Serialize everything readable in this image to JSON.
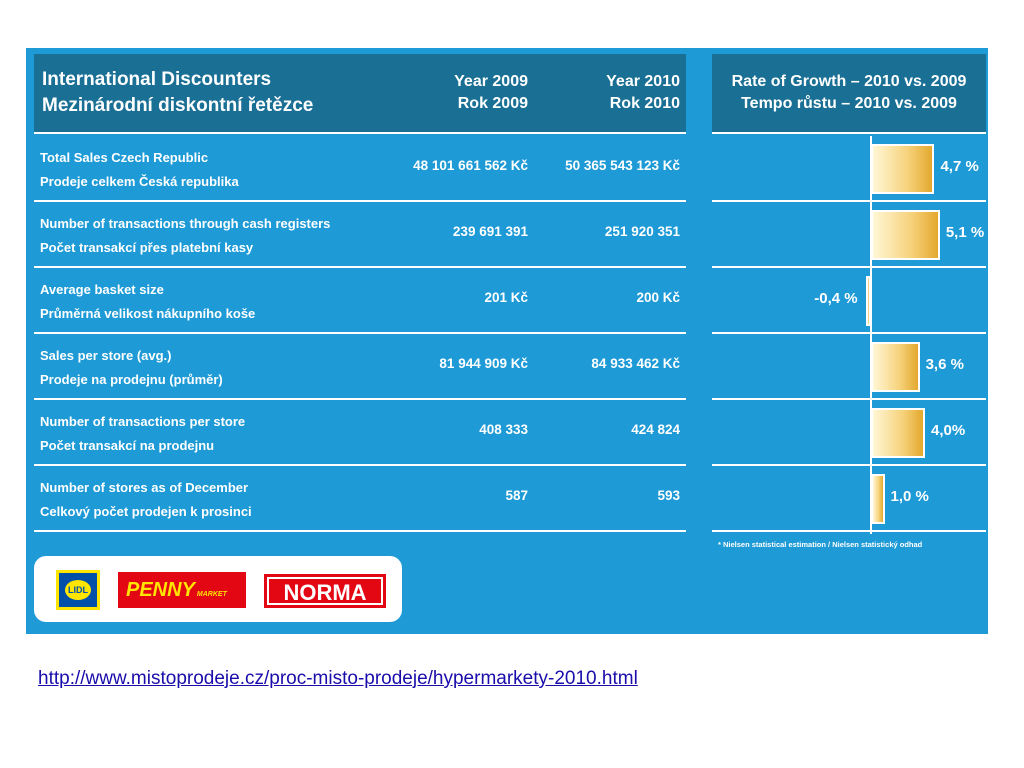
{
  "header": {
    "title_en": "International Discounters",
    "title_cz": "Mezinárodní diskontní řetězce",
    "year1_en": "Year 2009",
    "year1_cz": "Rok 2009",
    "year2_en": "Year 2010",
    "year2_cz": "Rok 2010",
    "rate_en": "Rate of Growth – 2010 vs. 2009",
    "rate_cz": "Tempo růstu – 2010 vs. 2009"
  },
  "rows": [
    {
      "label_en": "Total Sales Czech Republic",
      "label_cz": "Prodeje celkem Česká republika",
      "y2009": "48 101 661 562 Kč",
      "y2010": "50 365 543 123 Kč",
      "growth": "4,7 %"
    },
    {
      "label_en": "Number of transactions through cash registers",
      "label_cz": "Počet transakcí přes platební kasy",
      "y2009": "239 691 391",
      "y2010": "251 920 351",
      "growth": "5,1 %"
    },
    {
      "label_en": "Average basket size",
      "label_cz": "Průměrná velikost nákupního koše",
      "y2009": "201 Kč",
      "y2010": "200 Kč",
      "growth": "-0,4 %"
    },
    {
      "label_en": "Sales per store (avg.)",
      "label_cz": "Prodeje na prodejnu (průměr)",
      "y2009": "81 944 909 Kč",
      "y2010": "84 933 462 Kč",
      "growth": "3,6 %"
    },
    {
      "label_en": "Number of transactions per store",
      "label_cz": "Počet transakcí na prodejnu",
      "y2009": "408 333",
      "y2010": "424 824",
      "growth": "4,0%"
    },
    {
      "label_en": "Number of stores as of December",
      "label_cz": "Celkový počet prodejen k prosinci",
      "y2009": "587",
      "y2010": "593",
      "growth": "1,0 %"
    }
  ],
  "note": "* Nielsen statistical estimation / Nielsen statistický odhad",
  "logos": {
    "lidl": "LIDL",
    "penny": "PENNY",
    "penny_sub": "MARKET",
    "norma": "NORMA"
  },
  "link": "http://www.mistoprodeje.cz/proc-misto-prodeje/hypermarkety-2010.html",
  "chart_data": {
    "type": "bar",
    "orientation": "horizontal",
    "title": "Rate of Growth – 2010 vs. 2009",
    "categories": [
      "Total Sales Czech Republic",
      "Number of transactions through cash registers",
      "Average basket size",
      "Sales per store (avg.)",
      "Number of transactions per store",
      "Number of stores as of December"
    ],
    "values": [
      4.7,
      5.1,
      -0.4,
      3.6,
      4.0,
      1.0
    ],
    "unit": "%",
    "colors": {
      "bar": "#f0c25a",
      "panel": "#1e9ad6",
      "header": "#1a6f95"
    }
  }
}
